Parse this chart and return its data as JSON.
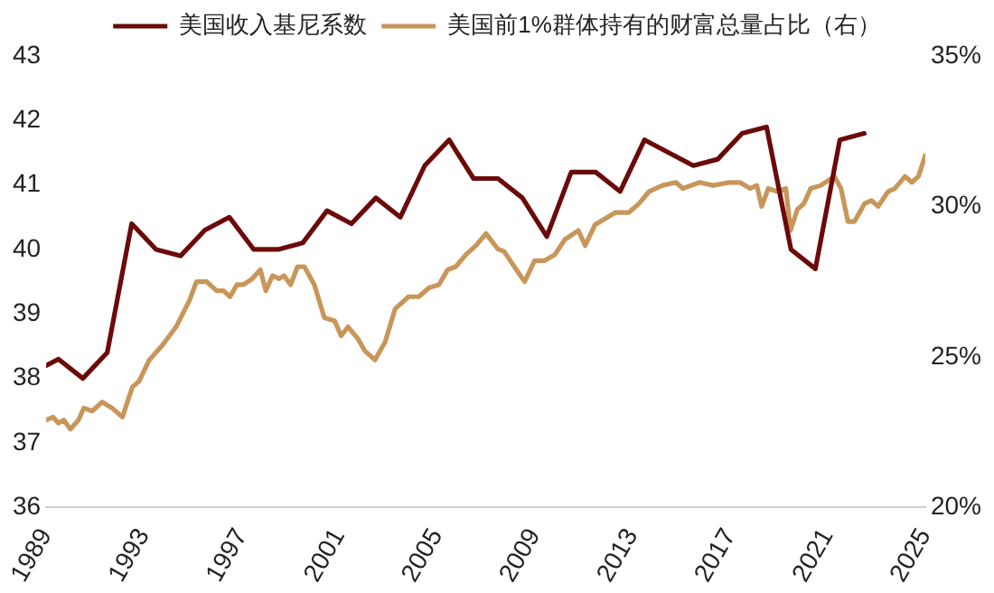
{
  "chart_data": {
    "type": "line",
    "legend": "top",
    "grid": false,
    "marker": "none",
    "line_style": "solid",
    "xlim": [
      1989,
      2025
    ],
    "xticks": [
      1989,
      1993,
      1997,
      2001,
      2005,
      2009,
      2013,
      2017,
      2021,
      2025
    ],
    "ylim": [
      36,
      43
    ],
    "yticks": [
      36,
      37,
      38,
      39,
      40,
      41,
      42,
      43
    ],
    "y2lim": [
      20,
      35
    ],
    "y2ticks": [
      {
        "value": 20,
        "label": "20%"
      },
      {
        "value": 25,
        "label": "25%"
      },
      {
        "value": 30,
        "label": "30%"
      },
      {
        "value": 35,
        "label": "35%"
      }
    ],
    "series": [
      {
        "name": "美国收入基尼系数",
        "color": "#6b0a0a",
        "x": [
          1989,
          1989.5,
          1990.5,
          1991.5,
          1992.5,
          1993.5,
          1994.5,
          1995.5,
          1996.5,
          1997.5,
          1998.5,
          1999.5,
          2000.5,
          2001.5,
          2002.5,
          2003.5,
          2004.5,
          2005.5,
          2006.5,
          2007.5,
          2008.5,
          2009.5,
          2010.5,
          2011.5,
          2012.5,
          2013.5,
          2014.5,
          2015.5,
          2016.5,
          2017.5,
          2018.5,
          2019.5,
          2020.5,
          2021.5,
          2022.5
        ],
        "values": [
          38.2,
          38.3,
          38.0,
          38.4,
          40.4,
          40.0,
          39.9,
          40.3,
          40.5,
          40.0,
          40.0,
          40.1,
          40.6,
          40.4,
          40.8,
          40.5,
          41.3,
          41.7,
          41.1,
          41.1,
          40.8,
          40.2,
          41.2,
          41.2,
          40.9,
          41.7,
          41.5,
          41.3,
          41.4,
          41.8,
          41.9,
          40.0,
          39.7,
          41.7,
          41.8
        ]
      },
      {
        "name": "美国前1%群体持有的财富总量占比（右）",
        "color": "#c8965a",
        "axis": "y2",
        "x": [
          1989.0,
          1989.28,
          1989.5,
          1989.72,
          1989.99,
          1990.32,
          1990.54,
          1990.88,
          1991.29,
          1991.7,
          1992.12,
          1992.53,
          1992.81,
          1993.22,
          1993.77,
          1994.32,
          1994.88,
          1995.15,
          1995.57,
          1995.98,
          1996.26,
          1996.53,
          1996.81,
          1997.08,
          1997.44,
          1997.77,
          1997.99,
          1998.27,
          1998.54,
          1998.74,
          1999.01,
          1999.29,
          1999.57,
          1999.98,
          2000.39,
          2000.81,
          2001.08,
          2001.36,
          2001.77,
          2002.05,
          2002.46,
          2002.88,
          2003.29,
          2003.84,
          2004.26,
          2004.68,
          2005.08,
          2005.44,
          2005.77,
          2006.19,
          2006.6,
          2007.01,
          2007.48,
          2007.76,
          2008.17,
          2008.59,
          2009.0,
          2009.41,
          2009.83,
          2010.24,
          2010.79,
          2011.07,
          2011.48,
          2011.9,
          2012.31,
          2012.86,
          2013.28,
          2013.69,
          2014.24,
          2014.79,
          2015.07,
          2015.76,
          2016.31,
          2017.0,
          2017.41,
          2017.83,
          2018.1,
          2018.3,
          2018.57,
          2018.93,
          2019.29,
          2019.48,
          2019.76,
          2020.03,
          2020.31,
          2020.72,
          2021.28,
          2021.55,
          2021.83,
          2022.1,
          2022.52,
          2022.79,
          2023.07,
          2023.48,
          2023.76,
          2024.17,
          2024.45,
          2024.72,
          2025.0
        ],
        "values": [
          22.9,
          23.0,
          22.8,
          22.9,
          22.6,
          22.9,
          23.3,
          23.2,
          23.5,
          23.3,
          23.0,
          24.0,
          24.2,
          24.9,
          25.4,
          26.0,
          26.9,
          27.5,
          27.5,
          27.2,
          27.2,
          27.0,
          27.4,
          27.4,
          27.6,
          27.9,
          27.2,
          27.7,
          27.6,
          27.7,
          27.4,
          28.0,
          28.0,
          27.4,
          26.3,
          26.2,
          25.7,
          26.0,
          25.6,
          25.2,
          24.9,
          25.5,
          26.6,
          27.0,
          27.0,
          27.3,
          27.4,
          27.9,
          28.0,
          28.4,
          28.7,
          29.1,
          28.6,
          28.5,
          28.0,
          27.5,
          28.2,
          28.2,
          28.4,
          28.9,
          29.2,
          28.7,
          29.4,
          29.6,
          29.8,
          29.8,
          30.1,
          30.5,
          30.7,
          30.8,
          30.6,
          30.8,
          30.7,
          30.8,
          30.8,
          30.6,
          30.7,
          30.0,
          30.6,
          30.5,
          30.6,
          29.2,
          29.9,
          30.1,
          30.6,
          30.7,
          31.0,
          30.6,
          29.5,
          29.5,
          30.1,
          30.2,
          30.0,
          30.5,
          30.6,
          31.0,
          30.8,
          31.0,
          31.7
        ]
      }
    ]
  }
}
